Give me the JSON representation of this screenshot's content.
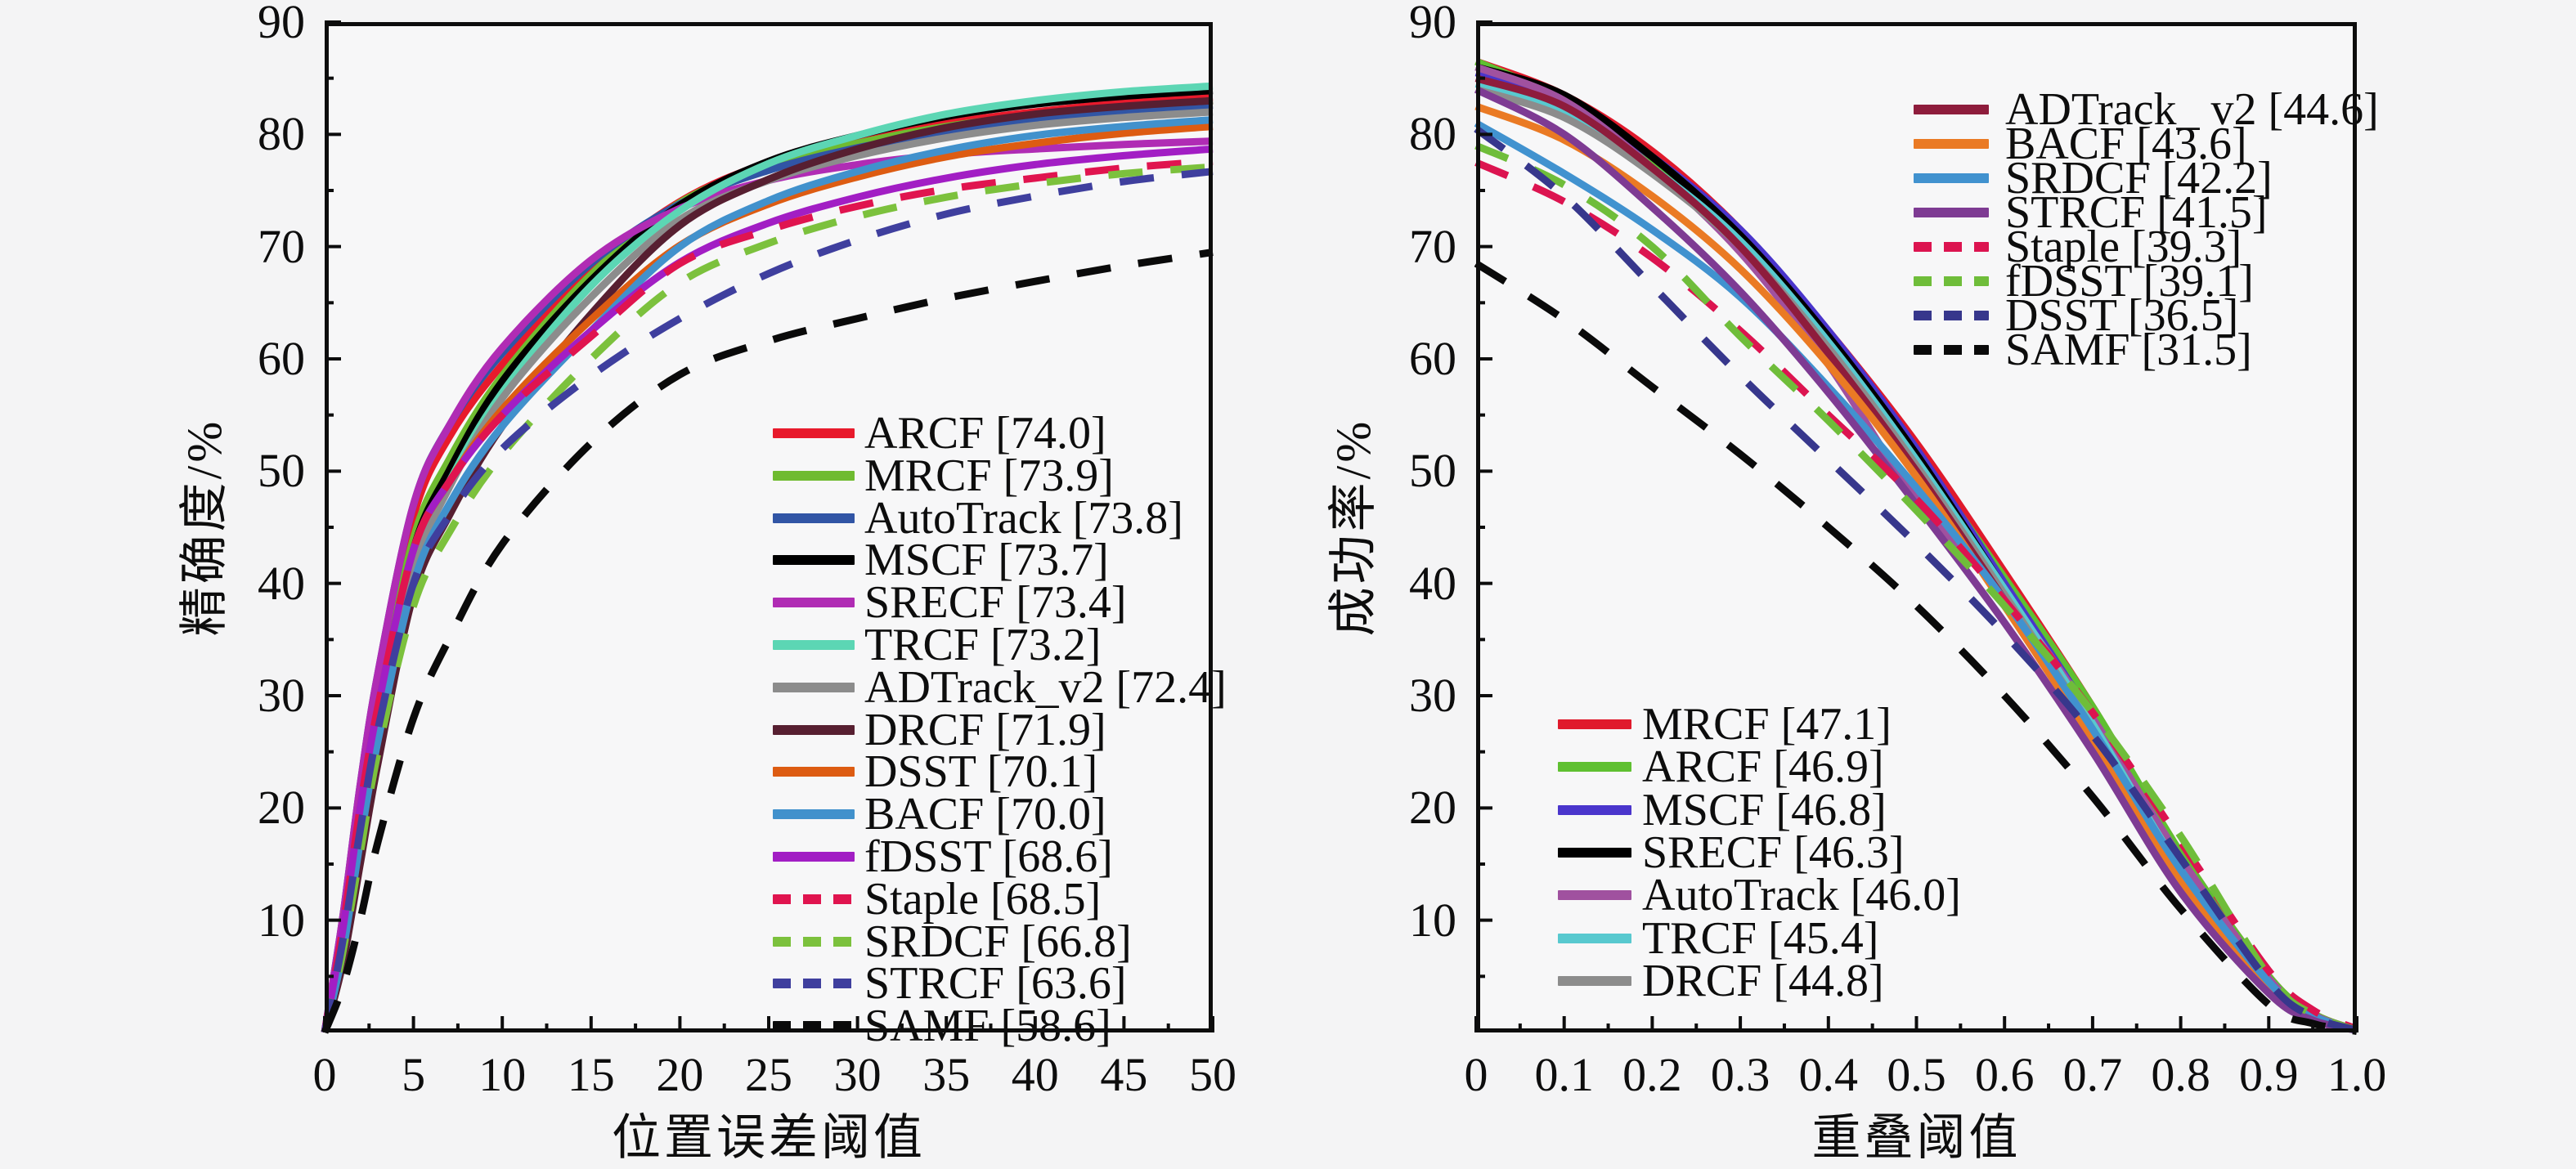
{
  "page": {
    "background": "#f4f4f5",
    "description": "双图跟踪评测结果：精确度图与成功率图"
  },
  "chart_data": [
    {
      "type": "line",
      "title": "",
      "xlabel": "位置误差阈值",
      "ylabel": "精确度/%",
      "xlim": [
        0,
        50
      ],
      "ylim": [
        0,
        90
      ],
      "grid": false,
      "legend_position": "center-right",
      "x_tick_labels": [
        "0",
        "5",
        "10",
        "15",
        "20",
        "25",
        "30",
        "35",
        "40",
        "45",
        "50"
      ],
      "x_tick_values": [
        0,
        5,
        10,
        15,
        20,
        25,
        30,
        35,
        40,
        45,
        50
      ],
      "y_tick_labels": [
        "10",
        "20",
        "30",
        "40",
        "50",
        "60",
        "70",
        "80",
        "90"
      ],
      "y_tick_values": [
        10,
        20,
        30,
        40,
        50,
        60,
        70,
        80,
        90
      ],
      "x": [
        0,
        1,
        2,
        3,
        5,
        7,
        10,
        15,
        20,
        25,
        30,
        35,
        40,
        45,
        50
      ],
      "series": [
        {
          "name": "ARCF",
          "score": "74.0",
          "label": "ARCF [74.0]",
          "color": "#e81a2c",
          "dashed": false,
          "legend": "main",
          "values": [
            0,
            9,
            21,
            31,
            46,
            53,
            59.5,
            68,
            74.0,
            77.5,
            79.5,
            81.0,
            82.0,
            82.8,
            83.3
          ]
        },
        {
          "name": "MRCF",
          "score": "73.9",
          "label": "MRCF [73.9]",
          "color": "#6fbb30",
          "dashed": false,
          "legend": "main",
          "values": [
            0,
            8,
            19,
            29,
            44,
            51,
            58.5,
            67.5,
            73.9,
            77.2,
            79.2,
            80.7,
            81.7,
            82.4,
            83.0
          ]
        },
        {
          "name": "AutoTrack",
          "score": "73.8",
          "label": "AutoTrack [73.8]",
          "color": "#3155a5",
          "dashed": false,
          "legend": "main",
          "values": [
            0,
            10,
            22,
            32,
            47,
            54,
            60.5,
            68.5,
            73.8,
            76.8,
            78.8,
            80.2,
            81.3,
            82.0,
            82.6
          ]
        },
        {
          "name": "MSCF",
          "score": "73.7",
          "label": "MSCF [73.7]",
          "color": "#000000",
          "dashed": false,
          "legend": "main",
          "values": [
            0,
            7,
            18,
            28,
            43,
            50,
            58,
            67,
            73.7,
            77.6,
            79.9,
            81.6,
            82.7,
            83.4,
            83.9
          ]
        },
        {
          "name": "SRECF",
          "score": "73.4",
          "label": "SRECF [73.4]",
          "color": "#b02cb4",
          "dashed": false,
          "legend": "main",
          "values": [
            0,
            10,
            22,
            32,
            47,
            54,
            61,
            68.8,
            73.4,
            75.9,
            77.3,
            78.2,
            78.7,
            79.1,
            79.4
          ]
        },
        {
          "name": "TRCF",
          "score": "73.2",
          "label": "TRCF [73.2]",
          "color": "#5cd6b4",
          "dashed": false,
          "legend": "main",
          "values": [
            0,
            7,
            17,
            27,
            42,
            49,
            57,
            66.5,
            73.2,
            77.4,
            79.9,
            81.8,
            83.0,
            83.8,
            84.3
          ]
        },
        {
          "name": "ADTrack_v2",
          "score": "72.4",
          "label": "ADTrack_v2 [72.4]",
          "color": "#8c8c8c",
          "dashed": false,
          "legend": "main",
          "values": [
            0,
            7,
            17,
            26,
            41,
            48.5,
            56.5,
            65.5,
            72.4,
            75.9,
            78.1,
            79.7,
            80.8,
            81.5,
            82.0
          ]
        },
        {
          "name": "DRCF",
          "score": "71.9",
          "label": "DRCF [71.9]",
          "color": "#571f31",
          "dashed": false,
          "legend": "main",
          "values": [
            0,
            6,
            15,
            24,
            39,
            46,
            54,
            64,
            71.9,
            76.0,
            78.7,
            80.6,
            81.8,
            82.5,
            83.0
          ]
        },
        {
          "name": "DSST",
          "score": "70.1",
          "label": "DSST [70.1]",
          "color": "#dd5c12",
          "dashed": false,
          "legend": "main",
          "values": [
            0,
            9,
            20,
            29,
            43,
            49,
            55.5,
            63.5,
            70.1,
            73.8,
            76.2,
            78.0,
            79.2,
            80.1,
            80.7
          ]
        },
        {
          "name": "BACF",
          "score": "70.0",
          "label": "BACF [70.0]",
          "color": "#4191cc",
          "dashed": false,
          "legend": "main",
          "values": [
            0,
            7,
            17,
            26,
            40,
            47,
            54,
            62.5,
            70.0,
            74.1,
            76.7,
            78.6,
            79.9,
            80.7,
            81.3
          ]
        },
        {
          "name": "fDSST",
          "score": "68.6",
          "label": "fDSST [68.6]",
          "color": "#a21ec4",
          "dashed": false,
          "legend": "main",
          "values": [
            0,
            9,
            20,
            29,
            43,
            49,
            55,
            62.5,
            68.6,
            72.1,
            74.4,
            76.1,
            77.3,
            78.1,
            78.7
          ]
        },
        {
          "name": "Staple",
          "score": "68.5",
          "label": "Staple [68.5]",
          "color": "#e0144f",
          "dashed": true,
          "legend": "main",
          "values": [
            0,
            9,
            20,
            29,
            43,
            49,
            55,
            62,
            68.5,
            71.5,
            73.6,
            75.1,
            76.1,
            77.0,
            77.6
          ]
        },
        {
          "name": "SRDCF",
          "score": "66.8",
          "label": "SRDCF [66.8]",
          "color": "#7cc13d",
          "dashed": true,
          "legend": "main",
          "values": [
            0,
            7,
            16,
            25,
            38,
            44.5,
            51.5,
            60,
            66.8,
            70.3,
            72.7,
            74.4,
            75.6,
            76.5,
            77.1
          ]
        },
        {
          "name": "STRCF",
          "score": "63.6",
          "label": "STRCF [63.6]",
          "color": "#3f3f9e",
          "dashed": true,
          "legend": "main",
          "values": [
            0,
            8,
            18,
            27,
            40,
            46,
            52,
            58.5,
            63.6,
            67.6,
            70.6,
            72.9,
            74.5,
            75.8,
            76.7
          ]
        },
        {
          "name": "SAMF",
          "score": "58.6",
          "label": "SAMF [58.6]",
          "color": "#0a0a0a",
          "dashed": true,
          "legend": "main",
          "values": [
            0,
            4,
            10,
            17,
            28,
            35,
            43.5,
            52.5,
            58.6,
            61.6,
            63.6,
            65.4,
            66.9,
            68.3,
            69.5
          ]
        }
      ]
    },
    {
      "type": "line",
      "title": "",
      "xlabel": "重叠阈值",
      "ylabel": "成功率/%",
      "xlim": [
        0,
        1.0
      ],
      "ylim": [
        0,
        90
      ],
      "grid": false,
      "legend_position": "top-right and bottom-left",
      "x_tick_labels": [
        "0",
        "0.1",
        "0.2",
        "0.3",
        "0.4",
        "0.5",
        "0.6",
        "0.7",
        "0.8",
        "0.9",
        "1.0"
      ],
      "x_tick_values": [
        0,
        0.1,
        0.2,
        0.3,
        0.4,
        0.5,
        0.6,
        0.7,
        0.8,
        0.9,
        1.0
      ],
      "y_tick_labels": [
        "10",
        "20",
        "30",
        "40",
        "50",
        "60",
        "70",
        "80",
        "90"
      ],
      "y_tick_values": [
        10,
        20,
        30,
        40,
        50,
        60,
        70,
        80,
        90
      ],
      "x": [
        0,
        0.1,
        0.2,
        0.3,
        0.4,
        0.5,
        0.6,
        0.7,
        0.8,
        0.9,
        0.95,
        1.0
      ],
      "series": [
        {
          "name": "MRCF",
          "score": "47.1",
          "label": "MRCF [47.1]",
          "color": "#e01a2c",
          "dashed": false,
          "legend": "bottom",
          "values": [
            86.5,
            83.5,
            78.5,
            71.5,
            62.5,
            52.5,
            41,
            29,
            16,
            5,
            1.7,
            0.2
          ]
        },
        {
          "name": "ARCF",
          "score": "46.9",
          "label": "ARCF [46.9]",
          "color": "#5fc031",
          "dashed": false,
          "legend": "bottom",
          "values": [
            86.5,
            83,
            77.5,
            70.5,
            61.5,
            51.5,
            40.5,
            29,
            16,
            5,
            1.7,
            0.2
          ]
        },
        {
          "name": "MSCF",
          "score": "46.8",
          "label": "MSCF [46.8]",
          "color": "#4a35cc",
          "dashed": false,
          "legend": "bottom",
          "values": [
            85.5,
            83,
            78,
            71.5,
            62.5,
            52,
            40,
            28,
            15,
            4.5,
            1.5,
            0.2
          ]
        },
        {
          "name": "SRECF",
          "score": "46.3",
          "label": "SRECF [46.3]",
          "color": "#000000",
          "dashed": false,
          "legend": "bottom",
          "values": [
            86,
            83.5,
            78,
            71,
            62,
            51.5,
            39.5,
            27.5,
            14.5,
            4.2,
            1.4,
            0.2
          ]
        },
        {
          "name": "AutoTrack",
          "score": "46.0",
          "label": "AutoTrack [46.0]",
          "color": "#a0519f",
          "dashed": false,
          "legend": "bottom",
          "values": [
            86,
            83,
            77,
            69.5,
            59.5,
            47.5,
            39,
            28,
            15.5,
            4.8,
            1.6,
            0.2
          ]
        },
        {
          "name": "TRCF",
          "score": "45.4",
          "label": "TRCF [45.4]",
          "color": "#58c9cf",
          "dashed": false,
          "legend": "bottom",
          "values": [
            84.5,
            82,
            77,
            70.5,
            61.5,
            51,
            39.5,
            27.5,
            14.5,
            4.2,
            1.4,
            0.2
          ]
        },
        {
          "name": "DRCF",
          "score": "44.8",
          "label": "DRCF [44.8]",
          "color": "#8c8c8c",
          "dashed": false,
          "legend": "bottom",
          "values": [
            84,
            81.5,
            76.5,
            70,
            61,
            50.5,
            39,
            27,
            14,
            4,
            1.3,
            0.2
          ]
        },
        {
          "name": "ADTrack_v2",
          "score": "44.6",
          "label": "ADTrack_ v2 [44.6]",
          "color": "#8e1c3c",
          "dashed": false,
          "legend": "top",
          "values": [
            85,
            82.5,
            77,
            70,
            60.5,
            50,
            38.5,
            26.5,
            13.5,
            3.8,
            1.2,
            0.2
          ]
        },
        {
          "name": "BACF",
          "score": "43.6",
          "label": "BACF [43.6]",
          "color": "#ea7a24",
          "dashed": false,
          "legend": "top",
          "values": [
            82.5,
            79.5,
            74.5,
            68,
            59.5,
            49.5,
            38,
            26,
            13.5,
            4,
            1.3,
            0.2
          ]
        },
        {
          "name": "SRDCF",
          "score": "42.2",
          "label": "SRDCF [42.2]",
          "color": "#4192cf",
          "dashed": false,
          "legend": "top",
          "values": [
            81,
            76.5,
            71.5,
            65.5,
            57.5,
            48.5,
            38.5,
            27,
            14.5,
            4.5,
            1.5,
            0.2
          ]
        },
        {
          "name": "STRCF",
          "score": "41.5",
          "label": "STRCF [41.5]",
          "color": "#7e3b93",
          "dashed": false,
          "legend": "top",
          "values": [
            84,
            80,
            73.5,
            66,
            57,
            47,
            36.5,
            25,
            12.5,
            3.5,
            1.1,
            0.2
          ]
        },
        {
          "name": "Staple",
          "score": "39.3",
          "label": "Staple [39.3]",
          "color": "#dc1450",
          "dashed": true,
          "legend": "top",
          "values": [
            77.5,
            74,
            69,
            62.5,
            55,
            47.5,
            38.5,
            28.5,
            17,
            5.5,
            2,
            0.3
          ]
        },
        {
          "name": "fDSST",
          "score": "39.1",
          "label": "fDSST [39.1]",
          "color": "#6fbd3a",
          "dashed": true,
          "legend": "top",
          "values": [
            79,
            75.5,
            70,
            62,
            54.5,
            46.5,
            38,
            28.5,
            17.5,
            5,
            1.6,
            0.2
          ]
        },
        {
          "name": "DSST",
          "score": "36.5",
          "label": "DSST [36.5]",
          "color": "#37378c",
          "dashed": true,
          "legend": "top",
          "values": [
            80.5,
            74.5,
            66.5,
            58.5,
            51,
            43.5,
            35.5,
            26.5,
            15.5,
            4.5,
            1.4,
            0.2
          ]
        },
        {
          "name": "SAMF",
          "score": "31.5",
          "label": "SAMF [31.5]",
          "color": "#0a0a0a",
          "dashed": true,
          "legend": "top",
          "values": [
            68.5,
            63.5,
            57.5,
            51.5,
            45,
            38,
            30,
            21,
            11,
            2.5,
            0.8,
            0.1
          ]
        }
      ]
    }
  ]
}
